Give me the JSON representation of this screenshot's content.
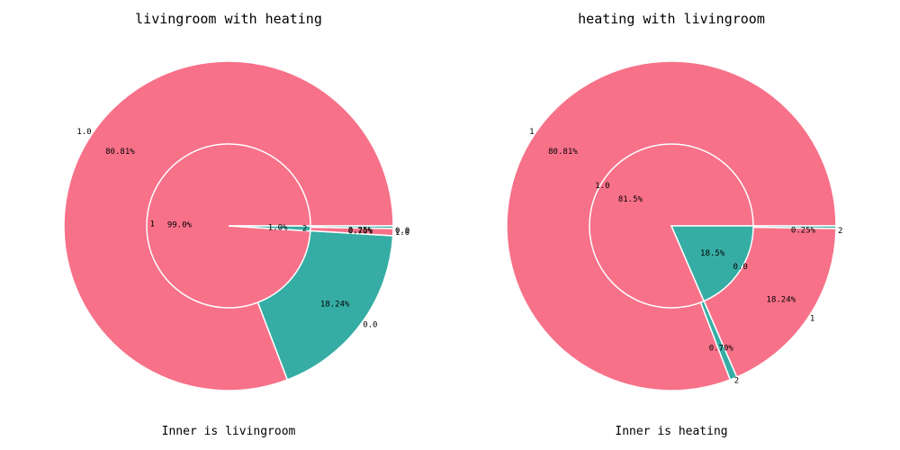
{
  "colors": {
    "pink": "#f77189",
    "teal": "#36ada4"
  },
  "chart_data": [
    {
      "type": "pie",
      "title": "livingroom with heating",
      "caption": "Inner is livingroom",
      "inner": [
        {
          "label": "1",
          "pct_label": "99.0%",
          "value": 99.0,
          "color": "#f77189"
        },
        {
          "label": "2",
          "pct_label": "1.0%",
          "value": 1.0,
          "color": "#36ada4"
        }
      ],
      "outer": [
        {
          "label": "1.0",
          "pct_label": "80.81%",
          "value": 80.81,
          "color": "#f77189"
        },
        {
          "label": "0.0",
          "pct_label": "18.24%",
          "value": 18.24,
          "color": "#36ada4"
        },
        {
          "label": "1.0",
          "pct_label": "0.70%",
          "value": 0.7,
          "color": "#f77189"
        },
        {
          "label": "0.0",
          "pct_label": "0.25%",
          "value": 0.25,
          "color": "#36ada4"
        }
      ]
    },
    {
      "type": "pie",
      "title": "heating with livingroom",
      "caption": "Inner is heating",
      "inner": [
        {
          "label": "1.0",
          "pct_label": "81.5%",
          "value": 81.5,
          "color": "#f77189"
        },
        {
          "label": "0.0",
          "pct_label": "18.5%",
          "value": 18.5,
          "color": "#36ada4"
        }
      ],
      "outer": [
        {
          "label": "1",
          "pct_label": "80.81%",
          "value": 80.81,
          "color": "#f77189"
        },
        {
          "label": "2",
          "pct_label": "0.70%",
          "value": 0.7,
          "color": "#36ada4"
        },
        {
          "label": "1",
          "pct_label": "18.24%",
          "value": 18.24,
          "color": "#f77189"
        },
        {
          "label": "2",
          "pct_label": "0.25%",
          "value": 0.25,
          "color": "#36ada4"
        }
      ]
    }
  ]
}
